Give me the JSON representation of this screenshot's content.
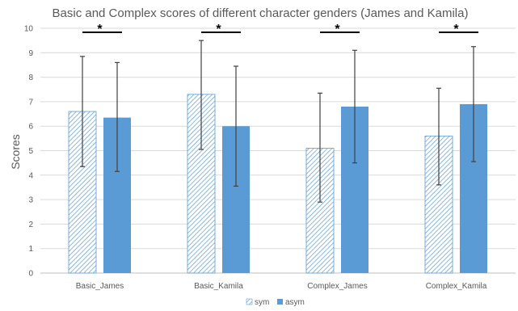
{
  "chart_data": {
    "type": "bar",
    "title": "Basic and Complex scores of different character genders (James and Kamila)",
    "ylabel": "Scores",
    "xlabel": "",
    "ylim": [
      0,
      10
    ],
    "yticks": [
      "0",
      "1",
      "2",
      "3",
      "4",
      "5",
      "6",
      "7",
      "8",
      "9",
      "10"
    ],
    "grid": true,
    "legend": "bottom",
    "categories": [
      "Basic_James",
      "Basic_Kamila",
      "Complex_James",
      "Complex_Kamila"
    ],
    "series": [
      {
        "name": "sym",
        "values": [
          6.6,
          7.3,
          5.1,
          5.6
        ],
        "err_low": [
          4.35,
          5.05,
          2.9,
          3.6
        ],
        "err_high": [
          8.85,
          9.5,
          7.35,
          7.55
        ],
        "color": "#5b9bd5",
        "pattern": "diagonal-hatch"
      },
      {
        "name": "asym",
        "values": [
          6.35,
          6.0,
          6.8,
          6.9
        ],
        "err_low": [
          4.15,
          3.55,
          4.5,
          4.55
        ],
        "err_high": [
          8.6,
          8.45,
          9.1,
          9.25
        ],
        "color": "#5b9bd5",
        "pattern": "solid"
      }
    ],
    "annotations": [
      {
        "category": "Basic_James",
        "text": "*"
      },
      {
        "category": "Basic_Kamila",
        "text": "*"
      },
      {
        "category": "Complex_James",
        "text": "*"
      },
      {
        "category": "Complex_Kamila",
        "text": "*"
      }
    ]
  }
}
